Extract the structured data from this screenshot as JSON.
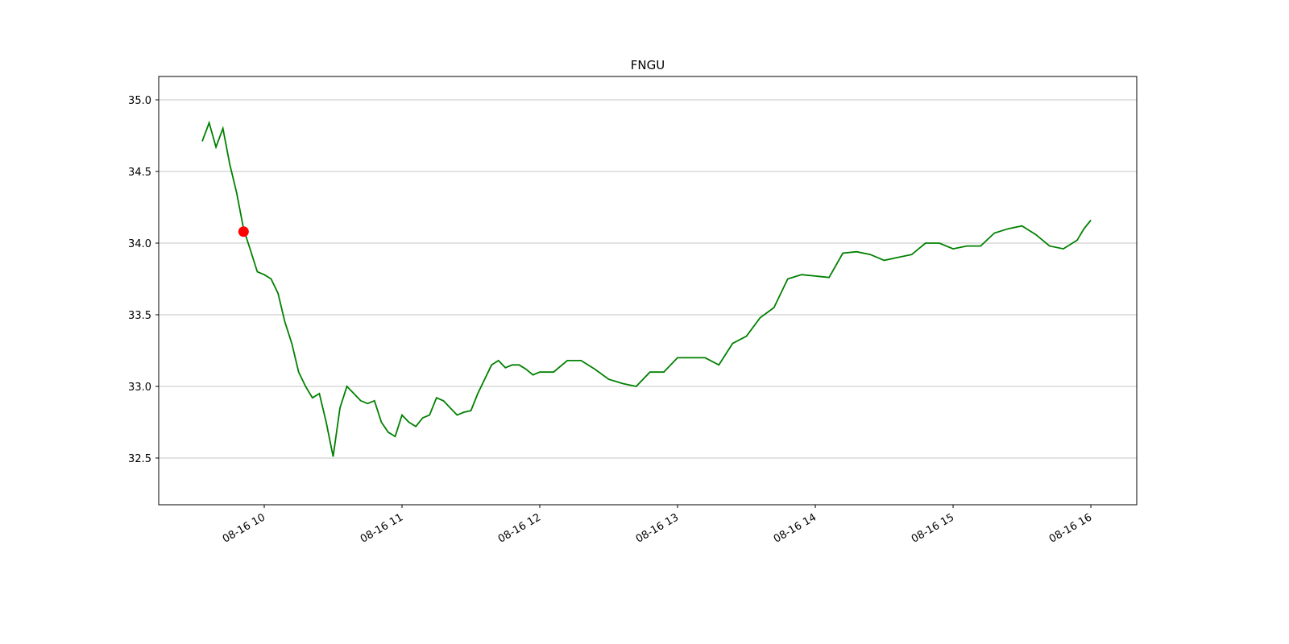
{
  "chart_data": {
    "type": "line",
    "title": "FNGU",
    "x": [
      9.55,
      9.6,
      9.65,
      9.7,
      9.75,
      9.8,
      9.85,
      9.9,
      9.95,
      10.0,
      10.05,
      10.1,
      10.15,
      10.2,
      10.25,
      10.3,
      10.35,
      10.4,
      10.45,
      10.5,
      10.55,
      10.6,
      10.65,
      10.7,
      10.75,
      10.8,
      10.85,
      10.9,
      10.95,
      11.0,
      11.05,
      11.1,
      11.15,
      11.2,
      11.25,
      11.3,
      11.35,
      11.4,
      11.45,
      11.5,
      11.55,
      11.6,
      11.65,
      11.7,
      11.75,
      11.8,
      11.85,
      11.9,
      11.95,
      12.0,
      12.1,
      12.2,
      12.3,
      12.4,
      12.5,
      12.6,
      12.7,
      12.8,
      12.9,
      13.0,
      13.1,
      13.2,
      13.3,
      13.4,
      13.5,
      13.6,
      13.7,
      13.8,
      13.9,
      14.0,
      14.1,
      14.2,
      14.3,
      14.4,
      14.5,
      14.6,
      14.7,
      14.8,
      14.9,
      15.0,
      15.1,
      15.2,
      15.3,
      15.4,
      15.5,
      15.6,
      15.7,
      15.8,
      15.9,
      15.95,
      16.0
    ],
    "values": [
      34.71,
      34.84,
      34.67,
      34.8,
      34.55,
      34.35,
      34.1,
      33.95,
      33.8,
      33.78,
      33.75,
      33.65,
      33.45,
      33.3,
      33.1,
      33.0,
      32.92,
      32.95,
      32.75,
      32.51,
      32.85,
      33.0,
      32.95,
      32.9,
      32.88,
      32.9,
      32.75,
      32.68,
      32.65,
      32.8,
      32.75,
      32.72,
      32.78,
      32.8,
      32.92,
      32.9,
      32.85,
      32.8,
      32.82,
      32.83,
      32.95,
      33.05,
      33.15,
      33.18,
      33.13,
      33.15,
      33.15,
      33.12,
      33.08,
      33.1,
      33.1,
      33.18,
      33.18,
      33.12,
      33.05,
      33.02,
      33.0,
      33.1,
      33.1,
      33.2,
      33.2,
      33.2,
      33.15,
      33.3,
      33.35,
      33.48,
      33.55,
      33.75,
      33.78,
      33.77,
      33.76,
      33.93,
      33.94,
      33.92,
      33.88,
      33.9,
      33.92,
      34.0,
      34.0,
      33.96,
      33.98,
      33.98,
      34.07,
      34.1,
      34.12,
      34.06,
      33.98,
      33.96,
      34.02,
      34.1,
      34.16
    ],
    "color": "green",
    "point": {
      "x": 9.85,
      "y": 34.08,
      "color": "red"
    },
    "xlim": [
      9.234,
      16.333
    ],
    "xticks": [
      {
        "value": 10,
        "label": "08-16 10"
      },
      {
        "value": 11,
        "label": "08-16 11"
      },
      {
        "value": 12,
        "label": "08-16 12"
      },
      {
        "value": 13,
        "label": "08-16 13"
      },
      {
        "value": 14,
        "label": "08-16 14"
      },
      {
        "value": 15,
        "label": "08-16 15"
      },
      {
        "value": 16,
        "label": "08-16 16"
      }
    ],
    "ylim": [
      32.174,
      35.163
    ],
    "yticks": [
      {
        "value": 32.5,
        "label": "32.5"
      },
      {
        "value": 33,
        "label": "33.0"
      },
      {
        "value": 33.5,
        "label": "33.5"
      },
      {
        "value": 34,
        "label": "34.0"
      },
      {
        "value": 34.5,
        "label": "34.5"
      },
      {
        "value": 35,
        "label": "35.0"
      }
    ],
    "grid": "y"
  }
}
